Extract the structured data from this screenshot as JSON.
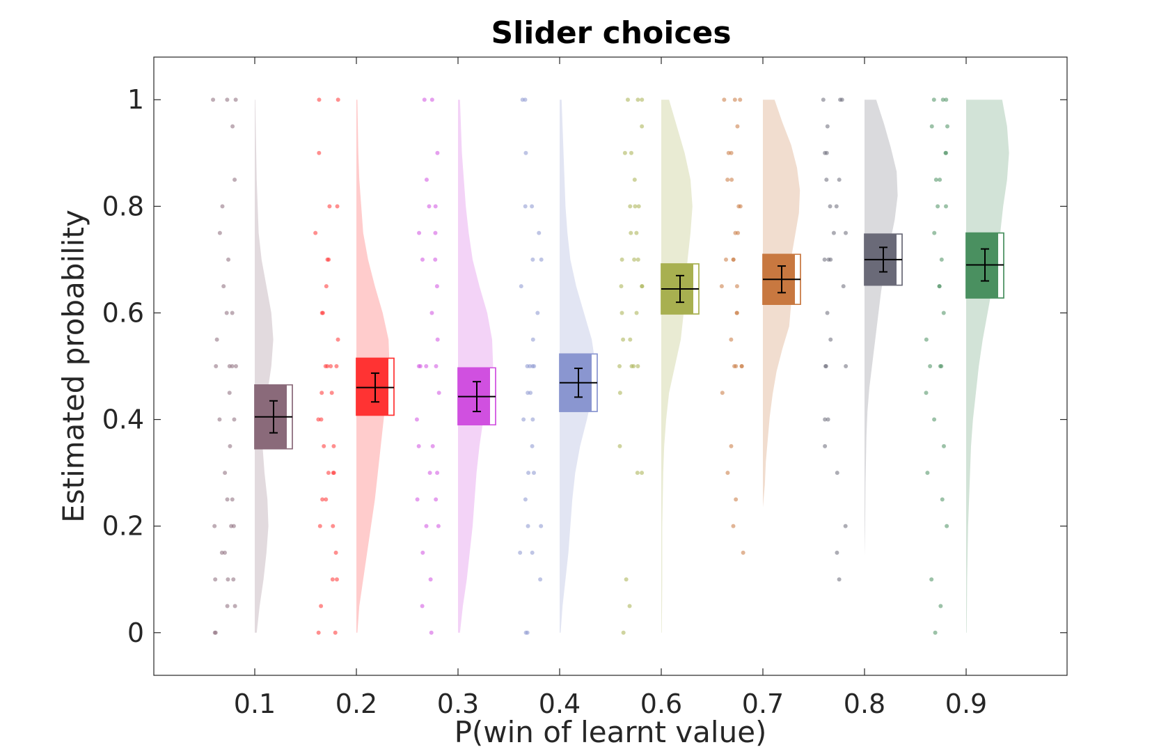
{
  "chart_data": {
    "type": "raincloud",
    "title": "Slider choices",
    "xlabel": "P(win of learnt value)",
    "ylabel": "Estimated probability",
    "ylim": [
      -0.08,
      1.08
    ],
    "yticks": [
      0,
      0.2,
      0.4,
      0.6,
      0.8,
      1
    ],
    "ytick_labels": [
      "0",
      "0.2",
      "0.4",
      "0.6",
      "0.8",
      "1"
    ],
    "grid": false,
    "categories": [
      "0.1",
      "0.2",
      "0.3",
      "0.4",
      "0.6",
      "0.7",
      "0.8",
      "0.9"
    ],
    "colors": [
      "#8a6a7a",
      "#ff3333",
      "#d050e0",
      "#8a96d0",
      "#a8b050",
      "#c87840",
      "#6a6a78",
      "#4a9060"
    ],
    "series": [
      {
        "mean": 0.405,
        "sem": 0.03,
        "box_low": 0.345,
        "box_high": 0.465,
        "density": [
          0.02,
          0.05,
          0.09,
          0.12,
          0.14,
          0.13,
          0.1,
          0.08,
          0.09,
          0.13,
          0.17,
          0.19,
          0.17,
          0.12,
          0.07,
          0.04,
          0.03,
          0.02,
          0.015,
          0.01,
          0.005
        ],
        "points": [
          0,
          0,
          0.05,
          0.05,
          0.1,
          0.1,
          0.1,
          0.15,
          0.15,
          0.2,
          0.2,
          0.2,
          0.25,
          0.25,
          0.3,
          0.35,
          0.4,
          0.4,
          0.45,
          0.5,
          0.5,
          0.5,
          0.5,
          0.55,
          0.6,
          0.6,
          0.65,
          0.7,
          0.75,
          0.8,
          0.85,
          0.95,
          1,
          1,
          1
        ]
      },
      {
        "mean": 0.46,
        "sem": 0.027,
        "box_low": 0.408,
        "box_high": 0.515,
        "density": [
          0.01,
          0.03,
          0.07,
          0.11,
          0.15,
          0.19,
          0.22,
          0.25,
          0.28,
          0.31,
          0.34,
          0.33,
          0.27,
          0.19,
          0.12,
          0.07,
          0.05,
          0.03,
          0.02,
          0.015,
          0.01
        ],
        "points": [
          0,
          0,
          0.05,
          0.1,
          0.1,
          0.15,
          0.2,
          0.2,
          0.25,
          0.25,
          0.3,
          0.3,
          0.3,
          0.35,
          0.35,
          0.4,
          0.4,
          0.45,
          0.45,
          0.5,
          0.5,
          0.5,
          0.5,
          0.55,
          0.6,
          0.6,
          0.65,
          0.7,
          0.7,
          0.75,
          0.8,
          0.8,
          0.9,
          1,
          1
        ]
      },
      {
        "mean": 0.443,
        "sem": 0.028,
        "box_low": 0.39,
        "box_high": 0.497,
        "density": [
          0.02,
          0.05,
          0.09,
          0.12,
          0.15,
          0.17,
          0.19,
          0.22,
          0.26,
          0.32,
          0.36,
          0.35,
          0.3,
          0.22,
          0.15,
          0.11,
          0.08,
          0.06,
          0.04,
          0.03,
          0.02
        ],
        "points": [
          0,
          0.05,
          0.1,
          0.15,
          0.2,
          0.2,
          0.25,
          0.25,
          0.3,
          0.3,
          0.35,
          0.35,
          0.4,
          0.45,
          0.5,
          0.5,
          0.5,
          0.5,
          0.55,
          0.6,
          0.65,
          0.7,
          0.7,
          0.75,
          0.75,
          0.8,
          0.8,
          0.85,
          0.9,
          1,
          1
        ]
      },
      {
        "mean": 0.469,
        "sem": 0.027,
        "box_low": 0.415,
        "box_high": 0.523,
        "density": [
          0.01,
          0.03,
          0.06,
          0.09,
          0.11,
          0.13,
          0.16,
          0.21,
          0.28,
          0.34,
          0.37,
          0.33,
          0.25,
          0.17,
          0.11,
          0.08,
          0.06,
          0.05,
          0.04,
          0.03,
          0.02
        ],
        "points": [
          0,
          0,
          0.1,
          0.15,
          0.15,
          0.2,
          0.2,
          0.25,
          0.3,
          0.3,
          0.35,
          0.4,
          0.4,
          0.45,
          0.45,
          0.5,
          0.5,
          0.5,
          0.5,
          0.55,
          0.6,
          0.65,
          0.7,
          0.7,
          0.75,
          0.8,
          0.8,
          0.9,
          1,
          1
        ]
      },
      {
        "mean": 0.645,
        "sem": 0.025,
        "box_low": 0.598,
        "box_high": 0.692,
        "density": [
          0.005,
          0.008,
          0.01,
          0.01,
          0.01,
          0.015,
          0.02,
          0.03,
          0.05,
          0.08,
          0.14,
          0.2,
          0.23,
          0.25,
          0.27,
          0.3,
          0.32,
          0.3,
          0.24,
          0.16,
          0.08
        ],
        "points": [
          0,
          0.05,
          0.1,
          0.3,
          0.3,
          0.35,
          0.45,
          0.5,
          0.5,
          0.5,
          0.5,
          0.55,
          0.55,
          0.6,
          0.6,
          0.65,
          0.65,
          0.65,
          0.7,
          0.7,
          0.7,
          0.75,
          0.75,
          0.8,
          0.8,
          0.8,
          0.85,
          0.9,
          0.9,
          0.95,
          1,
          1,
          1
        ]
      },
      {
        "mean": 0.663,
        "sem": 0.025,
        "box_low": 0.616,
        "box_high": 0.71,
        "density": [
          0,
          0,
          0,
          0.02,
          0.03,
          0.05,
          0.07,
          0.1,
          0.14,
          0.2,
          0.27,
          0.29,
          0.28,
          0.29,
          0.33,
          0.37,
          0.38,
          0.35,
          0.29,
          0.2,
          0.12
        ],
        "points": [
          0.15,
          0.2,
          0.25,
          0.3,
          0.35,
          0.45,
          0.5,
          0.5,
          0.5,
          0.5,
          0.55,
          0.6,
          0.6,
          0.65,
          0.65,
          0.7,
          0.7,
          0.7,
          0.75,
          0.75,
          0.8,
          0.8,
          0.85,
          0.85,
          0.9,
          0.9,
          0.95,
          1,
          1,
          1
        ]
      },
      {
        "mean": 0.7,
        "sem": 0.023,
        "box_low": 0.652,
        "box_high": 0.748,
        "density": [
          0,
          0,
          0.005,
          0.008,
          0.01,
          0.015,
          0.02,
          0.03,
          0.05,
          0.08,
          0.11,
          0.14,
          0.17,
          0.21,
          0.26,
          0.31,
          0.34,
          0.33,
          0.27,
          0.2,
          0.12
        ],
        "points": [
          0.1,
          0.15,
          0.2,
          0.3,
          0.35,
          0.4,
          0.4,
          0.5,
          0.5,
          0.5,
          0.55,
          0.6,
          0.65,
          0.7,
          0.7,
          0.7,
          0.75,
          0.75,
          0.8,
          0.8,
          0.85,
          0.85,
          0.9,
          0.9,
          0.95,
          1,
          1,
          1
        ]
      },
      {
        "mean": 0.69,
        "sem": 0.03,
        "box_low": 0.628,
        "box_high": 0.75,
        "density": [
          0.005,
          0.008,
          0.01,
          0.015,
          0.02,
          0.03,
          0.04,
          0.05,
          0.07,
          0.1,
          0.13,
          0.17,
          0.22,
          0.27,
          0.31,
          0.35,
          0.38,
          0.42,
          0.44,
          0.42,
          0.37
        ],
        "points": [
          0,
          0.05,
          0.1,
          0.2,
          0.25,
          0.3,
          0.35,
          0.4,
          0.45,
          0.5,
          0.5,
          0.5,
          0.55,
          0.6,
          0.65,
          0.65,
          0.7,
          0.75,
          0.8,
          0.8,
          0.85,
          0.85,
          0.9,
          0.9,
          0.95,
          0.95,
          1,
          1,
          1
        ]
      }
    ]
  }
}
